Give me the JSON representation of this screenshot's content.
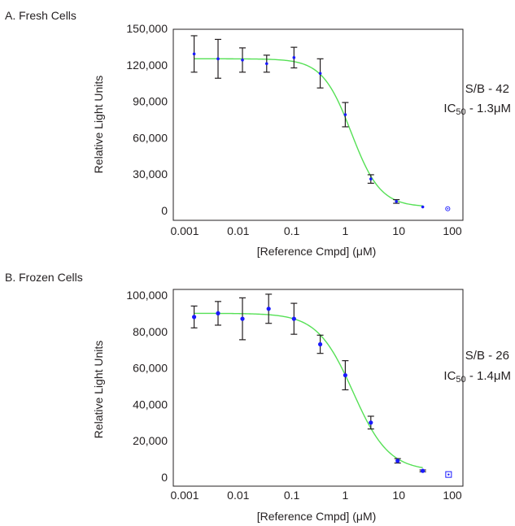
{
  "chart_data": [
    {
      "type": "scatter",
      "title": "A. Fresh Cells",
      "xlabel": "[Reference Cmpd] (μM)",
      "ylabel": "Relative Light Units",
      "x_scale": "log",
      "xlim": [
        0.001,
        100
      ],
      "ylim": [
        0,
        150000
      ],
      "xticks": [
        "0.001",
        "0.01",
        "0.1",
        "1",
        "10",
        "100"
      ],
      "yticks": [
        "0",
        "30,000",
        "60,000",
        "90,000",
        "120,000",
        "150,000"
      ],
      "annotation": {
        "sb": "S/B - 42",
        "ic50_prefix": "IC",
        "ic50_sub": "50",
        "ic50_suffix": " - 1.3μM"
      },
      "grid": false,
      "curve": {
        "top": 125000,
        "bottom": 3000,
        "ic50": 1.3,
        "hill": 1.6,
        "color": "#55e055"
      },
      "point_color": "#1a1aff",
      "points": [
        {
          "x": 0.0015,
          "y": 129000,
          "err": 15000
        },
        {
          "x": 0.0042,
          "y": 125000,
          "err": 16000
        },
        {
          "x": 0.012,
          "y": 124000,
          "err": 10000
        },
        {
          "x": 0.034,
          "y": 121000,
          "err": 7000
        },
        {
          "x": 0.11,
          "y": 126000,
          "err": 8500
        },
        {
          "x": 0.34,
          "y": 113000,
          "err": 12000
        },
        {
          "x": 1.0,
          "y": 79000,
          "err": 10000
        },
        {
          "x": 3.0,
          "y": 26000,
          "err": 3500
        },
        {
          "x": 9.0,
          "y": 7500,
          "err": 1500
        },
        {
          "x": 28,
          "y": 3000,
          "err": 0
        }
      ],
      "control_point": {
        "x": 82,
        "y": 1500
      }
    },
    {
      "type": "scatter",
      "title": "B. Frozen Cells",
      "xlabel": "[Reference Cmpd] (μM)",
      "ylabel": "Relative Light Units",
      "x_scale": "log",
      "xlim": [
        0.001,
        100
      ],
      "ylim": [
        0,
        100000
      ],
      "xticks": [
        "0.001",
        "0.01",
        "0.1",
        "1",
        "10",
        "100"
      ],
      "yticks": [
        "0",
        "20,000",
        "40,000",
        "60,000",
        "80,000",
        "100,000"
      ],
      "annotation": {
        "sb": "S/B - 26",
        "ic50_prefix": "IC",
        "ic50_sub": "50",
        "ic50_suffix": " - 1.4μM"
      },
      "grid": false,
      "curve": {
        "top": 90000,
        "bottom": 3500,
        "ic50": 1.4,
        "hill": 1.3,
        "color": "#55e055"
      },
      "point_color": "#1a1aff",
      "points": [
        {
          "x": 0.0015,
          "y": 88000,
          "err": 6000
        },
        {
          "x": 0.0042,
          "y": 90000,
          "err": 6500
        },
        {
          "x": 0.012,
          "y": 87000,
          "err": 11500
        },
        {
          "x": 0.037,
          "y": 92500,
          "err": 8000
        },
        {
          "x": 0.11,
          "y": 87000,
          "err": 8500
        },
        {
          "x": 0.34,
          "y": 73000,
          "err": 5000
        },
        {
          "x": 1.0,
          "y": 56000,
          "err": 8000
        },
        {
          "x": 3.0,
          "y": 30000,
          "err": 3500
        },
        {
          "x": 9.5,
          "y": 9000,
          "err": 1200
        },
        {
          "x": 28,
          "y": 3500,
          "err": 500
        }
      ],
      "control_point": {
        "x": 85,
        "y": 1500
      }
    }
  ]
}
